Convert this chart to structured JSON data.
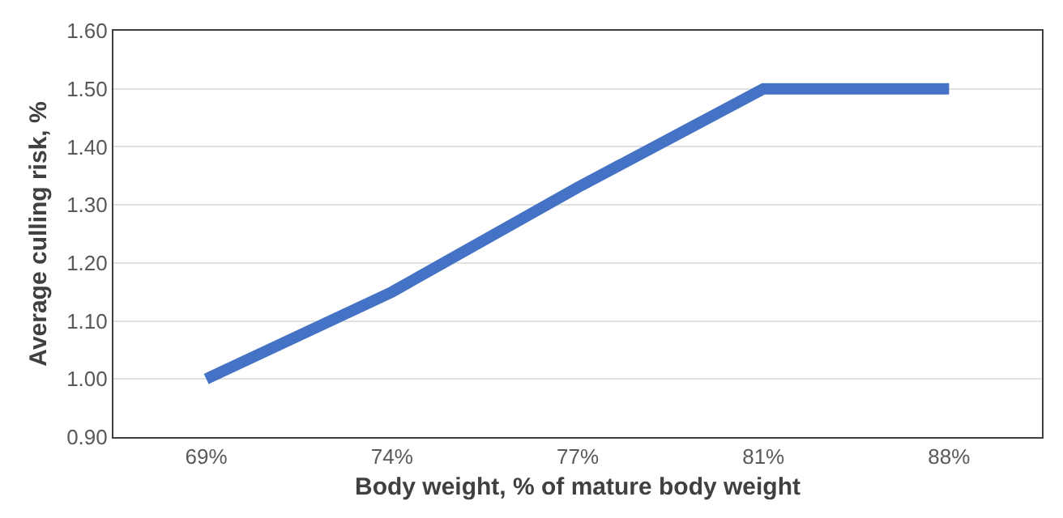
{
  "chart_data": {
    "type": "line",
    "xlabel": "Body weight, % of mature body weight",
    "ylabel": "Average culling risk, %",
    "categories": [
      "69%",
      "74%",
      "77%",
      "81%",
      "88%"
    ],
    "series": [
      {
        "color": "#4472c4",
        "values": [
          1.0,
          1.15,
          1.33,
          1.5,
          1.5
        ]
      }
    ],
    "ylim": [
      0.9,
      1.6
    ],
    "yticks": [
      {
        "value": 0.9,
        "label": "0.90"
      },
      {
        "value": 1.0,
        "label": "1.00"
      },
      {
        "value": 1.1,
        "label": "1.10"
      },
      {
        "value": 1.2,
        "label": "1.20"
      },
      {
        "value": 1.3,
        "label": "1.30"
      },
      {
        "value": 1.4,
        "label": "1.40"
      },
      {
        "value": 1.5,
        "label": "1.50"
      },
      {
        "value": 1.6,
        "label": "1.60"
      }
    ],
    "grid": "y",
    "marker": "none",
    "line_style": "solid"
  }
}
